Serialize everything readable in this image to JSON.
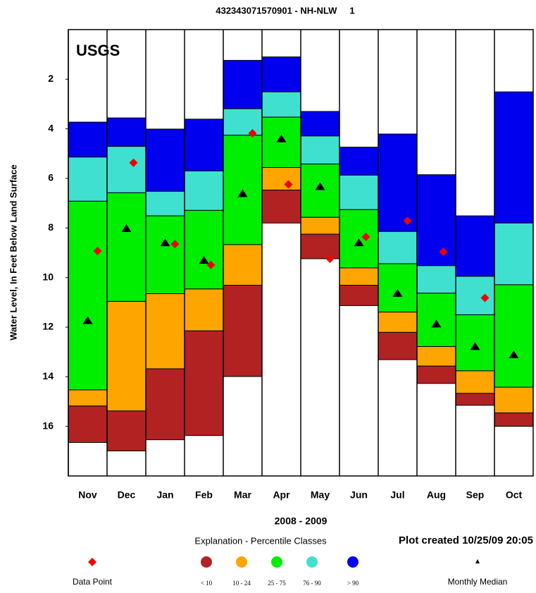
{
  "chart_data": {
    "type": "percentile_bar",
    "title": "432343071570901 - NH-NLW     1",
    "logo": "USGS",
    "y_label": "Water Level, In Feet Below Land Surface",
    "x_label": "2008 - 2009",
    "explanation": "Explanation - Percentile Classes",
    "note": "Plot created 10/25/09 20:05",
    "categories": [
      "Nov",
      "Dec",
      "Jan",
      "Feb",
      "Mar",
      "Apr",
      "May",
      "Jun",
      "Jul",
      "Aug",
      "Sep",
      "Oct"
    ],
    "ylim": [
      0,
      18
    ],
    "y_inverted": true,
    "yticks": [
      2,
      4,
      6,
      8,
      10,
      12,
      14,
      16
    ],
    "levels": [
      [
        3.73,
        3.56,
        4.01,
        3.61,
        1.24,
        1.1,
        3.3,
        4.74,
        4.21,
        5.85,
        7.51,
        2.51
      ],
      [
        5.14,
        4.71,
        6.52,
        5.7,
        3.19,
        2.51,
        4.29,
        5.87,
        8.14,
        9.52,
        9.95,
        7.8
      ],
      [
        6.92,
        6.58,
        7.51,
        7.29,
        4.26,
        3.53,
        5.42,
        7.26,
        9.44,
        10.63,
        11.5,
        10.29
      ],
      [
        14.53,
        10.96,
        10.65,
        10.46,
        8.67,
        5.56,
        7.57,
        9.61,
        11.39,
        12.78,
        13.76,
        14.42
      ],
      [
        15.18,
        15.38,
        13.68,
        12.15,
        10.31,
        6.47,
        8.25,
        10.31,
        12.21,
        13.57,
        14.67,
        15.46
      ],
      [
        16.65,
        16.99,
        16.54,
        16.37,
        13.99,
        7.8,
        9.24,
        11.13,
        13.31,
        14.27,
        15.15,
        16.0
      ]
    ],
    "classes": [
      {
        "label": "< 10",
        "color": "#b22222"
      },
      {
        "label": "10 - 24",
        "color": "#ffa500"
      },
      {
        "label": "25 - 75",
        "color": "#00ee00"
      },
      {
        "label": "76 - 90",
        "color": "#40e0d0"
      },
      {
        "label": "> 90",
        "color": "#0000ee"
      }
    ],
    "series": [
      {
        "name": "Data Point",
        "color": "#ee0000",
        "marker": "diamond",
        "values": [
          8.93,
          5.37,
          8.65,
          9.49,
          4.18,
          6.24,
          9.24,
          8.36,
          7.71,
          8.96,
          10.82,
          null
        ]
      },
      {
        "name": "Monthly Median",
        "color": "#000000",
        "marker": "triangle",
        "values": [
          11.73,
          8.02,
          8.59,
          9.3,
          6.61,
          4.4,
          6.33,
          8.59,
          10.63,
          11.87,
          12.78,
          13.11
        ]
      }
    ]
  }
}
